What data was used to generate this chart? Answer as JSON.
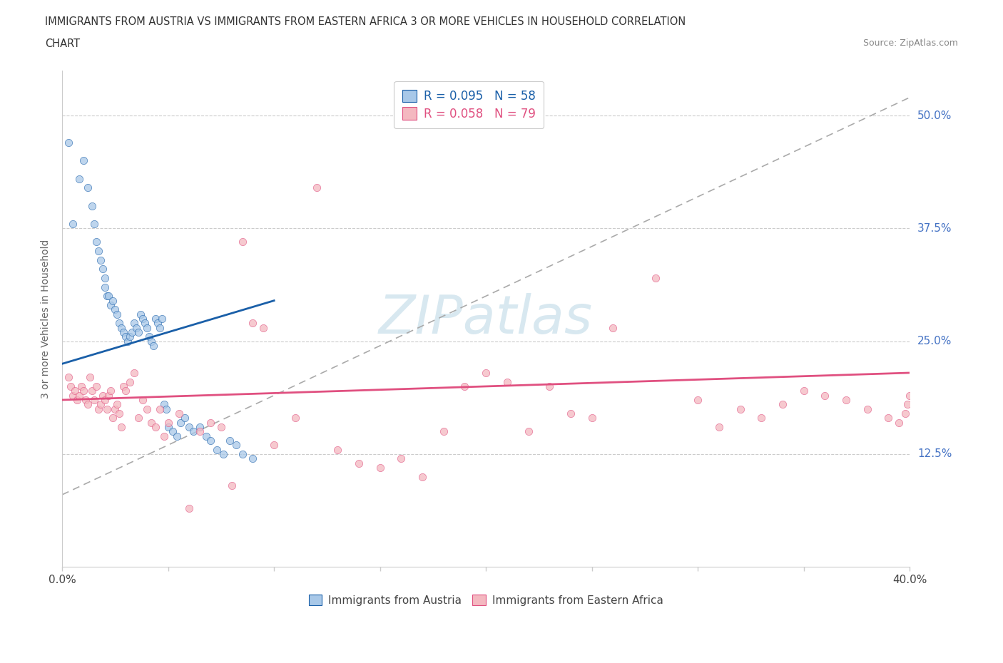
{
  "title_line1": "IMMIGRANTS FROM AUSTRIA VS IMMIGRANTS FROM EASTERN AFRICA 3 OR MORE VEHICLES IN HOUSEHOLD CORRELATION",
  "title_line2": "CHART",
  "source": "Source: ZipAtlas.com",
  "ylabel": "3 or more Vehicles in Household",
  "ytick_labels": [
    "12.5%",
    "25.0%",
    "37.5%",
    "50.0%"
  ],
  "ytick_values": [
    0.125,
    0.25,
    0.375,
    0.5
  ],
  "xlim": [
    0.0,
    0.4
  ],
  "ylim": [
    0.0,
    0.55
  ],
  "legend_austria_R": "R = 0.095",
  "legend_austria_N": "N = 58",
  "legend_eastern_R": "R = 0.058",
  "legend_eastern_N": "N = 79",
  "austria_color": "#a8c8e8",
  "eastern_color": "#f4b8c0",
  "austria_line_color": "#1a5fa8",
  "eastern_line_color": "#e05080",
  "dashed_line_color": "#aaaaaa",
  "watermark_color": "#d8e8f0",
  "austria_x": [
    0.003,
    0.005,
    0.008,
    0.01,
    0.012,
    0.014,
    0.015,
    0.016,
    0.017,
    0.018,
    0.019,
    0.02,
    0.02,
    0.021,
    0.022,
    0.023,
    0.024,
    0.025,
    0.026,
    0.027,
    0.028,
    0.029,
    0.03,
    0.031,
    0.032,
    0.033,
    0.034,
    0.035,
    0.036,
    0.037,
    0.038,
    0.039,
    0.04,
    0.041,
    0.042,
    0.043,
    0.044,
    0.045,
    0.046,
    0.047,
    0.048,
    0.049,
    0.05,
    0.052,
    0.054,
    0.056,
    0.058,
    0.06,
    0.062,
    0.065,
    0.068,
    0.07,
    0.073,
    0.076,
    0.079,
    0.082,
    0.085,
    0.09
  ],
  "austria_y": [
    0.47,
    0.38,
    0.43,
    0.45,
    0.42,
    0.4,
    0.38,
    0.36,
    0.35,
    0.34,
    0.33,
    0.32,
    0.31,
    0.3,
    0.3,
    0.29,
    0.295,
    0.285,
    0.28,
    0.27,
    0.265,
    0.26,
    0.255,
    0.25,
    0.255,
    0.26,
    0.27,
    0.265,
    0.26,
    0.28,
    0.275,
    0.27,
    0.265,
    0.255,
    0.25,
    0.245,
    0.275,
    0.27,
    0.265,
    0.275,
    0.18,
    0.175,
    0.155,
    0.15,
    0.145,
    0.16,
    0.165,
    0.155,
    0.15,
    0.155,
    0.145,
    0.14,
    0.13,
    0.125,
    0.14,
    0.135,
    0.125,
    0.12
  ],
  "eastern_x": [
    0.003,
    0.004,
    0.005,
    0.006,
    0.007,
    0.008,
    0.009,
    0.01,
    0.011,
    0.012,
    0.013,
    0.014,
    0.015,
    0.016,
    0.017,
    0.018,
    0.019,
    0.02,
    0.021,
    0.022,
    0.023,
    0.024,
    0.025,
    0.026,
    0.027,
    0.028,
    0.029,
    0.03,
    0.032,
    0.034,
    0.036,
    0.038,
    0.04,
    0.042,
    0.044,
    0.046,
    0.048,
    0.05,
    0.055,
    0.06,
    0.065,
    0.07,
    0.075,
    0.08,
    0.085,
    0.09,
    0.095,
    0.1,
    0.11,
    0.12,
    0.13,
    0.14,
    0.15,
    0.16,
    0.17,
    0.18,
    0.19,
    0.2,
    0.21,
    0.22,
    0.23,
    0.24,
    0.25,
    0.26,
    0.28,
    0.3,
    0.31,
    0.32,
    0.33,
    0.34,
    0.35,
    0.36,
    0.37,
    0.38,
    0.39,
    0.395,
    0.398,
    0.399,
    0.4
  ],
  "eastern_y": [
    0.21,
    0.2,
    0.19,
    0.195,
    0.185,
    0.19,
    0.2,
    0.195,
    0.185,
    0.18,
    0.21,
    0.195,
    0.185,
    0.2,
    0.175,
    0.18,
    0.19,
    0.185,
    0.175,
    0.19,
    0.195,
    0.165,
    0.175,
    0.18,
    0.17,
    0.155,
    0.2,
    0.195,
    0.205,
    0.215,
    0.165,
    0.185,
    0.175,
    0.16,
    0.155,
    0.175,
    0.145,
    0.16,
    0.17,
    0.065,
    0.15,
    0.16,
    0.155,
    0.09,
    0.36,
    0.27,
    0.265,
    0.135,
    0.165,
    0.42,
    0.13,
    0.115,
    0.11,
    0.12,
    0.1,
    0.15,
    0.2,
    0.215,
    0.205,
    0.15,
    0.2,
    0.17,
    0.165,
    0.265,
    0.32,
    0.185,
    0.155,
    0.175,
    0.165,
    0.18,
    0.195,
    0.19,
    0.185,
    0.175,
    0.165,
    0.16,
    0.17,
    0.18,
    0.19
  ],
  "austria_line_x": [
    0.0,
    0.1
  ],
  "austria_line_y": [
    0.225,
    0.295
  ],
  "eastern_line_x": [
    0.0,
    0.4
  ],
  "eastern_line_y": [
    0.185,
    0.215
  ],
  "dash_line_x": [
    0.0,
    0.4
  ],
  "dash_line_y": [
    0.08,
    0.52
  ]
}
